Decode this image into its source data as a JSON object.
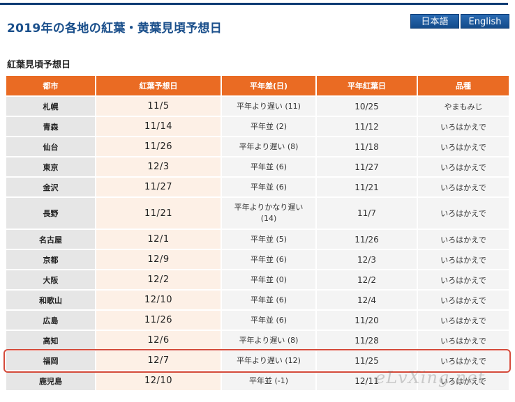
{
  "header": {
    "title": "2019年の各地の紅葉・黄葉見頃予想日",
    "lang_ja": "日本語",
    "lang_en": "English"
  },
  "section": {
    "title": "紅葉見頃予想日"
  },
  "table": {
    "columns": [
      "都市",
      "紅葉予想日",
      "平年差(日)",
      "平年紅葉日",
      "品種"
    ],
    "rows": [
      {
        "city": "札幌",
        "date": "11/5",
        "diff": "平年より遅い (11)",
        "avg": "10/25",
        "variety": "やまもみじ"
      },
      {
        "city": "青森",
        "date": "11/14",
        "diff": "平年並 (2)",
        "avg": "11/12",
        "variety": "いろはかえで"
      },
      {
        "city": "仙台",
        "date": "11/26",
        "diff": "平年より遅い (8)",
        "avg": "11/18",
        "variety": "いろはかえで"
      },
      {
        "city": "東京",
        "date": "12/3",
        "diff": "平年並 (6)",
        "avg": "11/27",
        "variety": "いろはかえで"
      },
      {
        "city": "金沢",
        "date": "11/27",
        "diff": "平年並 (6)",
        "avg": "11/21",
        "variety": "いろはかえで"
      },
      {
        "city": "長野",
        "date": "11/21",
        "diff": "平年よりかなり遅い (14)",
        "avg": "11/7",
        "variety": "いろはかえで"
      },
      {
        "city": "名古屋",
        "date": "12/1",
        "diff": "平年並 (5)",
        "avg": "11/26",
        "variety": "いろはかえで"
      },
      {
        "city": "京都",
        "date": "12/9",
        "diff": "平年並 (6)",
        "avg": "12/3",
        "variety": "いろはかえで"
      },
      {
        "city": "大阪",
        "date": "12/2",
        "diff": "平年並 (0)",
        "avg": "12/2",
        "variety": "いろはかえで"
      },
      {
        "city": "和歌山",
        "date": "12/10",
        "diff": "平年並 (6)",
        "avg": "12/4",
        "variety": "いろはかえで"
      },
      {
        "city": "広島",
        "date": "11/26",
        "diff": "平年並 (6)",
        "avg": "11/20",
        "variety": "いろはかえで"
      },
      {
        "city": "高知",
        "date": "12/6",
        "diff": "平年より遅い (8)",
        "avg": "11/28",
        "variety": "いろはかえで"
      },
      {
        "city": "福岡",
        "date": "12/7",
        "diff": "平年より遅い (12)",
        "avg": "11/25",
        "variety": "いろはかえで"
      },
      {
        "city": "鹿児島",
        "date": "12/10",
        "diff": "平年並 (-1)",
        "avg": "12/11",
        "variety": "いろはかえで"
      }
    ]
  },
  "watermark": "eLvXing.net",
  "colors": {
    "header_accent": "#ea6b23",
    "title_blue": "#1a4f8b",
    "highlight_border": "#d44a3a",
    "date_column_bg": "#fdf0e6"
  }
}
